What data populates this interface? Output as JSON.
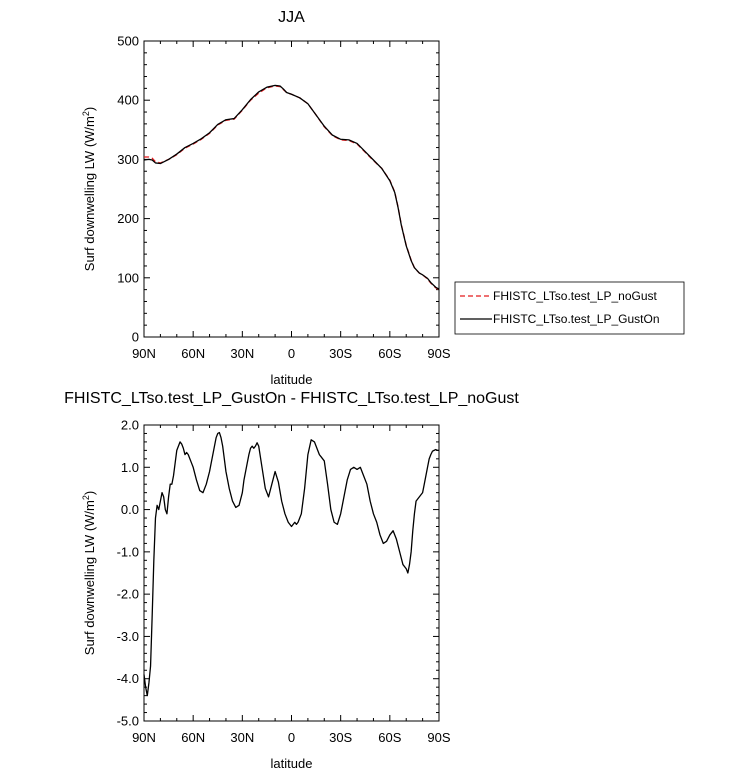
{
  "chart_data": [
    {
      "type": "line",
      "title": "JJA",
      "xlabel": "latitude",
      "ylabel": "Surf downwelling LW (W/m",
      "ylabel_sup": "2",
      "ylabel_end": ")",
      "xlim": [
        90,
        -90
      ],
      "ylim": [
        0,
        500
      ],
      "xticks": [
        {
          "value": 90,
          "label": "90N"
        },
        {
          "value": 60,
          "label": "60N"
        },
        {
          "value": 30,
          "label": "30N"
        },
        {
          "value": 0,
          "label": "0"
        },
        {
          "value": -30,
          "label": "30S"
        },
        {
          "value": -60,
          "label": "60S"
        },
        {
          "value": -90,
          "label": "90S"
        }
      ],
      "yticks": [
        {
          "value": 0,
          "label": "0"
        },
        {
          "value": 100,
          "label": "100"
        },
        {
          "value": 200,
          "label": "200"
        },
        {
          "value": 300,
          "label": "300"
        },
        {
          "value": 400,
          "label": "400"
        },
        {
          "value": 500,
          "label": "500"
        }
      ],
      "legend_position": "right",
      "series": [
        {
          "name": "FHISTC_LTso.test_LP_noGust",
          "color": "#e41a1c",
          "dash": "dashed",
          "x": [
            90,
            87,
            85,
            83,
            80,
            75,
            70,
            65,
            60,
            55,
            50,
            45,
            40,
            35,
            30,
            25,
            20,
            15,
            10,
            7,
            5,
            3,
            0,
            -5,
            -10,
            -15,
            -20,
            -25,
            -30,
            -35,
            -40,
            -45,
            -50,
            -55,
            -60,
            -63,
            -65,
            -67,
            -70,
            -73,
            -75,
            -78,
            -80,
            -83,
            -85,
            -88,
            -90
          ],
          "y": [
            304,
            304,
            302,
            296,
            294,
            300,
            308,
            319,
            326,
            334,
            344,
            358,
            366,
            368,
            383,
            400,
            412,
            421,
            424,
            423,
            418,
            413,
            410,
            404,
            394,
            375,
            355,
            340,
            333,
            332,
            326,
            312,
            298,
            285,
            265,
            245,
            220,
            190,
            155,
            130,
            117,
            108,
            105,
            98,
            91,
            83,
            80
          ]
        },
        {
          "name": "FHISTC_LTso.test_LP_GustOn",
          "color": "#000000",
          "dash": "solid",
          "x": [
            90,
            87,
            85,
            83,
            80,
            75,
            70,
            65,
            60,
            55,
            50,
            45,
            40,
            35,
            30,
            25,
            20,
            15,
            10,
            7,
            5,
            3,
            0,
            -5,
            -10,
            -15,
            -20,
            -25,
            -30,
            -35,
            -40,
            -45,
            -50,
            -55,
            -60,
            -63,
            -65,
            -67,
            -70,
            -73,
            -75,
            -78,
            -80,
            -83,
            -85,
            -88,
            -90
          ],
          "y": [
            299,
            300,
            299,
            294,
            293,
            300,
            309,
            320,
            327,
            335,
            345,
            359,
            367,
            369,
            384,
            401,
            414,
            422,
            425,
            424,
            419,
            413,
            410,
            404,
            394,
            375,
            356,
            341,
            334,
            333,
            327,
            313,
            299,
            285,
            264,
            244,
            219,
            189,
            154,
            129,
            117,
            108,
            105,
            99,
            92,
            84,
            81
          ]
        }
      ]
    },
    {
      "type": "line",
      "title": "FHISTC_LTso.test_LP_GustOn - FHISTC_LTso.test_LP_noGust",
      "xlabel": "latitude",
      "ylabel": "Surf downwelling LW (W/m",
      "ylabel_sup": "2",
      "ylabel_end": ")",
      "xlim": [
        90,
        -90
      ],
      "ylim": [
        -5.0,
        2.0
      ],
      "xticks": [
        {
          "value": 90,
          "label": "90N"
        },
        {
          "value": 60,
          "label": "60N"
        },
        {
          "value": 30,
          "label": "30N"
        },
        {
          "value": 0,
          "label": "0"
        },
        {
          "value": -30,
          "label": "30S"
        },
        {
          "value": -60,
          "label": "60S"
        },
        {
          "value": -90,
          "label": "90S"
        }
      ],
      "yticks": [
        {
          "value": -5.0,
          "label": "-5.0"
        },
        {
          "value": -4.0,
          "label": "-4.0"
        },
        {
          "value": -3.0,
          "label": "-3.0"
        },
        {
          "value": -2.0,
          "label": "-2.0"
        },
        {
          "value": -1.0,
          "label": "-1.0"
        },
        {
          "value": 0.0,
          "label": "0.0"
        },
        {
          "value": 1.0,
          "label": "1.0"
        },
        {
          "value": 2.0,
          "label": "2.0"
        }
      ],
      "series": [
        {
          "name": "",
          "color": "#000000",
          "dash": "solid",
          "x": [
            90,
            89,
            88,
            87,
            86,
            85,
            84,
            83,
            82,
            81,
            80,
            79,
            78,
            77,
            76,
            75,
            74,
            73,
            72,
            71,
            70,
            69,
            68,
            67,
            66,
            65,
            64,
            63,
            62,
            61,
            60,
            58,
            56,
            54,
            52,
            50,
            49,
            48,
            47,
            46,
            45,
            44,
            43,
            42,
            41,
            40,
            38,
            36,
            34,
            32,
            30,
            29,
            28,
            27,
            26,
            25,
            24,
            23,
            22,
            21,
            20,
            18,
            16,
            14,
            12,
            10,
            8,
            6,
            4,
            2,
            0,
            -1,
            -2,
            -3,
            -4,
            -6,
            -8,
            -10,
            -12,
            -14,
            -15,
            -16,
            -17,
            -18,
            -19,
            -20,
            -22,
            -24,
            -26,
            -28,
            -30,
            -32,
            -34,
            -36,
            -38,
            -40,
            -42,
            -44,
            -46,
            -48,
            -50,
            -52,
            -54,
            -56,
            -58,
            -60,
            -62,
            -64,
            -66,
            -68,
            -70,
            -71,
            -72,
            -73,
            -74,
            -75,
            -76,
            -77,
            -78,
            -79,
            -80,
            -81,
            -82,
            -83,
            -84,
            -85,
            -86,
            -87,
            -88,
            -89,
            -90
          ],
          "y": [
            -3.9,
            -4.2,
            -4.4,
            -4.1,
            -3.7,
            -2.5,
            -1.2,
            -0.2,
            0.1,
            0.0,
            0.2,
            0.4,
            0.3,
            0.0,
            -0.1,
            0.3,
            0.6,
            0.6,
            0.8,
            1.1,
            1.4,
            1.5,
            1.6,
            1.55,
            1.45,
            1.3,
            1.35,
            1.3,
            1.2,
            1.1,
            1.0,
            0.7,
            0.45,
            0.4,
            0.6,
            0.9,
            1.1,
            1.3,
            1.5,
            1.7,
            1.8,
            1.82,
            1.7,
            1.5,
            1.2,
            0.9,
            0.5,
            0.2,
            0.05,
            0.1,
            0.4,
            0.7,
            0.9,
            1.1,
            1.3,
            1.45,
            1.5,
            1.45,
            1.5,
            1.58,
            1.5,
            1.0,
            0.5,
            0.3,
            0.6,
            0.9,
            0.65,
            0.2,
            -0.1,
            -0.3,
            -0.4,
            -0.35,
            -0.3,
            -0.35,
            -0.3,
            -0.1,
            0.5,
            1.3,
            1.65,
            1.6,
            1.5,
            1.4,
            1.3,
            1.25,
            1.2,
            1.15,
            0.6,
            0.0,
            -0.3,
            -0.35,
            -0.1,
            0.3,
            0.7,
            0.95,
            1.0,
            0.95,
            1.0,
            0.8,
            0.6,
            0.2,
            -0.1,
            -0.3,
            -0.6,
            -0.8,
            -0.75,
            -0.6,
            -0.5,
            -0.7,
            -1.0,
            -1.3,
            -1.4,
            -1.5,
            -1.3,
            -1.0,
            -0.5,
            -0.1,
            0.2,
            0.25,
            0.3,
            0.35,
            0.4,
            0.6,
            0.8,
            1.0,
            1.2,
            1.3,
            1.38,
            1.4,
            1.42,
            1.4,
            1.4
          ]
        }
      ]
    }
  ]
}
